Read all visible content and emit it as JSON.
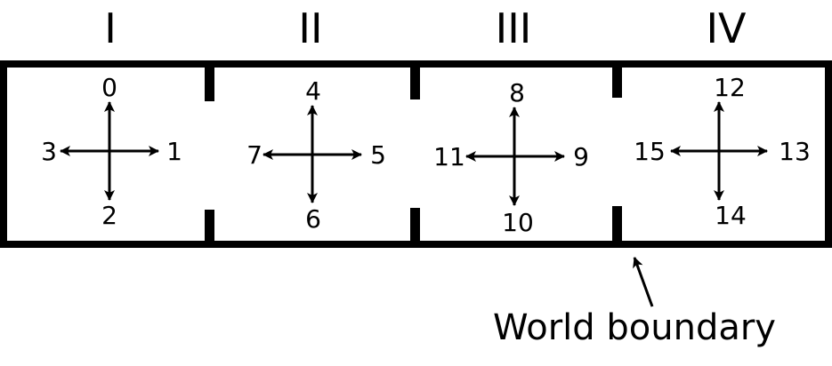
{
  "rooms": [
    {
      "label": "I",
      "directions": {
        "up": "0",
        "right": "1",
        "down": "2",
        "left": "3"
      }
    },
    {
      "label": "II",
      "directions": {
        "up": "4",
        "right": "5",
        "down": "6",
        "left": "7"
      }
    },
    {
      "label": "III",
      "directions": {
        "up": "8",
        "right": "9",
        "down": "10",
        "left": "11"
      }
    },
    {
      "label": "IV",
      "directions": {
        "up": "12",
        "right": "13",
        "down": "14",
        "left": "15"
      }
    }
  ],
  "caption": "World boundary",
  "colors": {
    "stroke": "#000000",
    "background": "#ffffff"
  }
}
